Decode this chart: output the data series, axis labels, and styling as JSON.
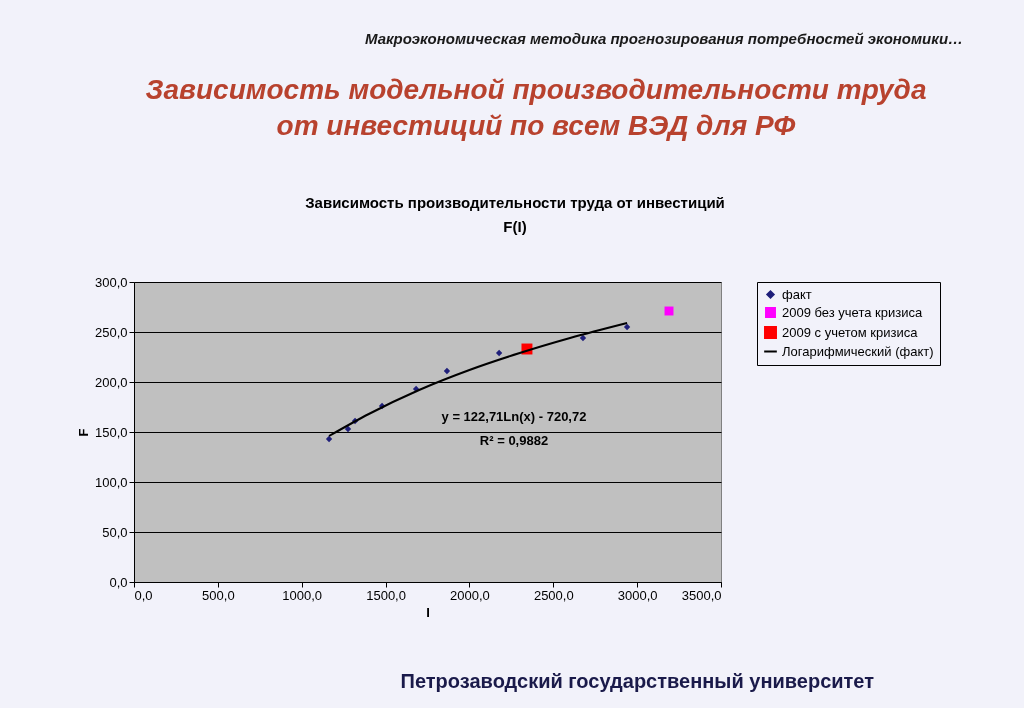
{
  "chart_data": {
    "type": "scatter",
    "title": "Зависимость модельной производительности труда\nот инвестиций по всем ВЭД для РФ",
    "subtitle": "Зависимость производительности труда от инвестиций\nF(I)",
    "xlabel": "I",
    "ylabel": "F",
    "xlim": [
      0,
      3500
    ],
    "ylim": [
      0,
      300
    ],
    "xticks": [
      {
        "value": 0,
        "label": "0,0"
      },
      {
        "value": 500,
        "label": "500,0"
      },
      {
        "value": 1000,
        "label": "1000,0"
      },
      {
        "value": 1500,
        "label": "1500,0"
      },
      {
        "value": 2000,
        "label": "2000,0"
      },
      {
        "value": 2500,
        "label": "2500,0"
      },
      {
        "value": 3000,
        "label": "3000,0"
      },
      {
        "value": 3500,
        "label": "3500,0"
      }
    ],
    "yticks": [
      {
        "value": 0,
        "label": "0,0"
      },
      {
        "value": 50,
        "label": "50,0"
      },
      {
        "value": 100,
        "label": "100,0"
      },
      {
        "value": 150,
        "label": "150,0"
      },
      {
        "value": 200,
        "label": "200,0"
      },
      {
        "value": 250,
        "label": "250,0"
      },
      {
        "value": 300,
        "label": "300,0"
      }
    ],
    "grid": "y",
    "legend": "right",
    "series": [
      {
        "name": "факт",
        "color": "#1f1f7a",
        "marker": "diamond",
        "x": [
          1163,
          1276,
          1318,
          1479,
          1682,
          1866,
          2177,
          2677,
          2940
        ],
        "values": [
          143,
          153,
          161,
          176,
          193,
          211,
          229,
          244,
          255
        ]
      },
      {
        "name": "2009 без учета кризиса",
        "color": "#ff00ff",
        "marker": "square",
        "x": [
          3190
        ],
        "values": [
          271
        ]
      },
      {
        "name": "2009 с учетом кризиса",
        "color": "#ff0000",
        "marker": "square",
        "x": [
          2343
        ],
        "values": [
          233
        ]
      },
      {
        "name": "Логарифмический (факт)",
        "type": "line",
        "color": "#000000",
        "marker": "none",
        "x": [
          1163,
          1400,
          1700,
          2000,
          2300,
          2600,
          2940
        ],
        "values": [
          146,
          168,
          192,
          212,
          229,
          244,
          259
        ]
      }
    ],
    "annotations": [
      "Макроэкономическая методика прогнозирования потребностей экономики…",
      "y = 122,71Ln(x) - 720,72",
      "R² = 0,9882",
      "Петрозаводский государственный университет"
    ]
  }
}
